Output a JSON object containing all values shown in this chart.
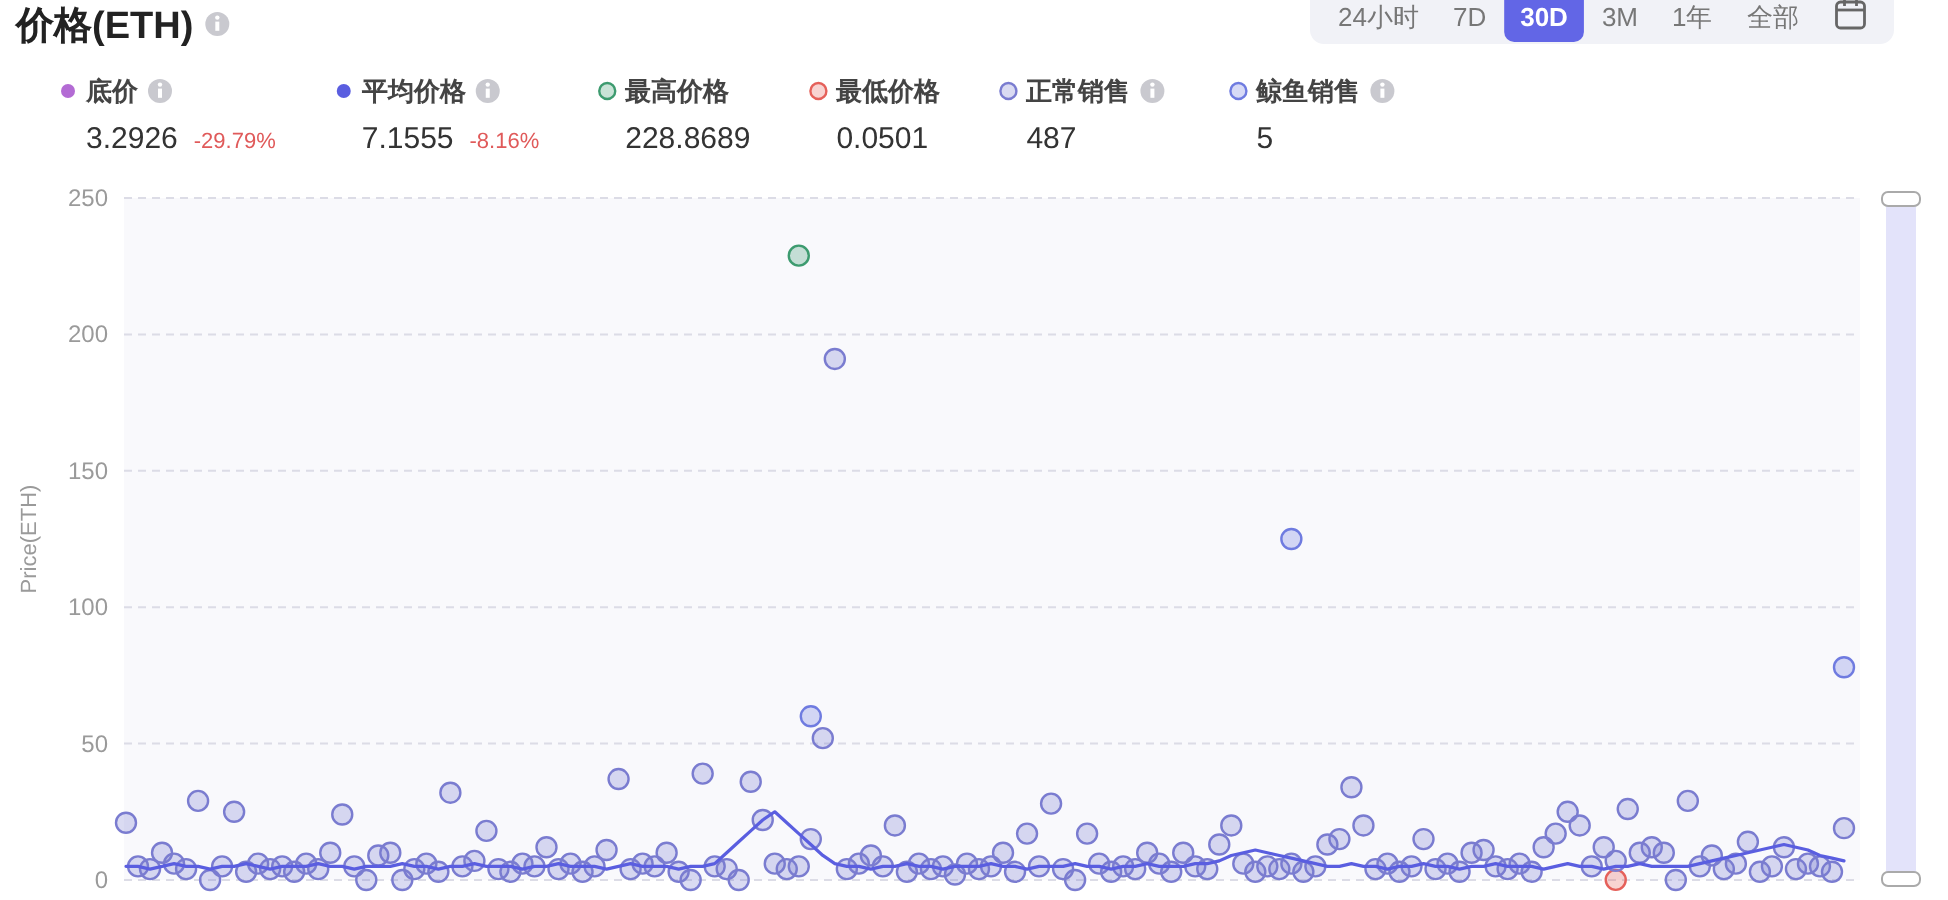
{
  "chart_data": {
    "type": "scatter",
    "title": "价格(ETH)",
    "ylabel": "Price(ETH)",
    "ylim": [
      0,
      250
    ],
    "yticks": [
      0,
      50,
      100,
      150,
      200,
      250
    ],
    "grid": "y",
    "legend": "top",
    "annotations": [
      "24小时",
      "7D",
      "30D",
      "3M",
      "1年",
      "全部",
      "3.2926",
      "-29.79%",
      "7.1555",
      "-8.16%",
      "228.8689",
      "0.0501",
      "487",
      "5"
    ],
    "categories": [
      null,
      null,
      null,
      null,
      null,
      null,
      null,
      null,
      null,
      null,
      null,
      null,
      null,
      null,
      null,
      null,
      null,
      null,
      null,
      null,
      null,
      null,
      null,
      null,
      null,
      null,
      null,
      null,
      null,
      null,
      null,
      null,
      null,
      null,
      null,
      null,
      null,
      null,
      null,
      null,
      null,
      null,
      null,
      null,
      null,
      null,
      null,
      null,
      null,
      null,
      null,
      null,
      null,
      null,
      null,
      null,
      null,
      null,
      null,
      null,
      null,
      null,
      null,
      null,
      null,
      null,
      null,
      null,
      null,
      null,
      null,
      null,
      null,
      null,
      null,
      null,
      null,
      null,
      null,
      null,
      null,
      null,
      null,
      null,
      null,
      null,
      null,
      null,
      null,
      null,
      null,
      null,
      null,
      null,
      null,
      null,
      null,
      null,
      null,
      null,
      null,
      null,
      null,
      null,
      null,
      null,
      null,
      null,
      null,
      null,
      null,
      null,
      null,
      null,
      null,
      null,
      null,
      null,
      null,
      null,
      null,
      null,
      null,
      null,
      null,
      null,
      null,
      null,
      null,
      null,
      null,
      null,
      null,
      null,
      null,
      null,
      null,
      null,
      null,
      null,
      null,
      null,
      null,
      null
    ],
    "series": [
      {
        "name": "底价",
        "type": "line",
        "color": "#b36bd4",
        "values": [
          null,
          null,
          null,
          null,
          null,
          null,
          null,
          null,
          null,
          null,
          null,
          null,
          null,
          null,
          null,
          null,
          null,
          null,
          null,
          null,
          null,
          null,
          null,
          null,
          null,
          null,
          null,
          null,
          null,
          null,
          null,
          null,
          null,
          null,
          null,
          null,
          null,
          null,
          null,
          null,
          null,
          null,
          null,
          null,
          null,
          null,
          null,
          null,
          null,
          null,
          null,
          null,
          null,
          null,
          null,
          null,
          null,
          null,
          null,
          null,
          null,
          null,
          null,
          null,
          null,
          null,
          null,
          null,
          null,
          null,
          null,
          null,
          null,
          null,
          null,
          null,
          null,
          null,
          null,
          null,
          null,
          null,
          null,
          null,
          null,
          null,
          null,
          null,
          null,
          null,
          null,
          null,
          null,
          null,
          null,
          null,
          null,
          null,
          null,
          null,
          null,
          null,
          null,
          null,
          null,
          null,
          null,
          null,
          null,
          null,
          null,
          null,
          null,
          null,
          null,
          null,
          null,
          null,
          null,
          null,
          null,
          null,
          null,
          null,
          null,
          null,
          null,
          null,
          null,
          null,
          null,
          null,
          null,
          null,
          null,
          null,
          null,
          null,
          null,
          null,
          null,
          null,
          null,
          null
        ]
      },
      {
        "name": "平均价格",
        "type": "line",
        "color": "#5a5ee0",
        "values": [
          5,
          5,
          4,
          5,
          6,
          5,
          5,
          4,
          5,
          5,
          6,
          5,
          4,
          5,
          5,
          5,
          6,
          5,
          5,
          4,
          5,
          5,
          5,
          6,
          5,
          5,
          4,
          5,
          5,
          6,
          5,
          5,
          5,
          4,
          5,
          5,
          6,
          5,
          5,
          5,
          4,
          5,
          6,
          5,
          5,
          5,
          4,
          5,
          5,
          6,
          10,
          14,
          18,
          22,
          25,
          21,
          17,
          13,
          9,
          6,
          5,
          5,
          4,
          5,
          5,
          6,
          5,
          5,
          4,
          5,
          5,
          5,
          6,
          5,
          5,
          4,
          5,
          5,
          5,
          6,
          5,
          5,
          4,
          5,
          5,
          6,
          5,
          5,
          5,
          6,
          6,
          7,
          9,
          10,
          11,
          10,
          9,
          8,
          7,
          6,
          5,
          5,
          6,
          5,
          5,
          4,
          5,
          5,
          6,
          5,
          5,
          4,
          5,
          5,
          6,
          5,
          5,
          5,
          4,
          5,
          6,
          5,
          5,
          4,
          5,
          5,
          6,
          5,
          5,
          5,
          5,
          6,
          7,
          8,
          9,
          10,
          11,
          12,
          13,
          12,
          11,
          9,
          8,
          7
        ]
      },
      {
        "name": "最高价格",
        "type": "scatter",
        "color": "#3d9b6f",
        "values": [
          null,
          null,
          null,
          null,
          null,
          null,
          null,
          null,
          null,
          null,
          null,
          null,
          null,
          null,
          null,
          null,
          null,
          null,
          null,
          null,
          null,
          null,
          null,
          null,
          null,
          null,
          null,
          null,
          null,
          null,
          null,
          null,
          null,
          null,
          null,
          null,
          null,
          null,
          null,
          null,
          null,
          null,
          null,
          null,
          null,
          null,
          null,
          null,
          null,
          null,
          null,
          null,
          null,
          null,
          null,
          null,
          228.8689,
          null,
          null,
          null,
          null,
          null,
          null,
          null,
          null,
          null,
          null,
          null,
          null,
          null,
          null,
          null,
          null,
          null,
          null,
          null,
          null,
          null,
          null,
          null,
          null,
          null,
          null,
          null,
          null,
          null,
          null,
          null,
          null,
          null,
          null,
          null,
          null,
          null,
          null,
          null,
          null,
          null,
          null,
          null,
          null,
          null,
          null,
          null,
          null,
          null,
          null,
          null,
          null,
          null,
          null,
          null,
          null,
          null,
          null,
          null,
          null,
          null,
          null,
          null,
          null,
          null,
          null,
          null,
          null,
          null,
          null,
          null,
          null,
          null,
          null,
          null,
          null,
          null,
          null,
          null,
          null,
          null,
          null,
          null,
          null,
          null,
          null,
          null
        ]
      },
      {
        "name": "最低价格",
        "type": "scatter",
        "color": "#e5605a",
        "values": [
          null,
          null,
          null,
          null,
          null,
          null,
          null,
          null,
          null,
          null,
          null,
          null,
          null,
          null,
          null,
          null,
          null,
          null,
          null,
          null,
          null,
          null,
          null,
          null,
          null,
          null,
          null,
          null,
          null,
          null,
          null,
          null,
          null,
          null,
          null,
          null,
          null,
          null,
          null,
          null,
          null,
          null,
          null,
          null,
          null,
          null,
          null,
          null,
          null,
          null,
          null,
          null,
          null,
          null,
          null,
          null,
          null,
          null,
          null,
          null,
          null,
          null,
          null,
          null,
          null,
          null,
          null,
          null,
          null,
          null,
          null,
          null,
          null,
          null,
          null,
          null,
          null,
          null,
          null,
          null,
          null,
          null,
          null,
          null,
          null,
          null,
          null,
          null,
          null,
          null,
          null,
          null,
          null,
          null,
          null,
          null,
          null,
          null,
          null,
          null,
          null,
          null,
          null,
          null,
          null,
          null,
          null,
          null,
          null,
          null,
          null,
          null,
          null,
          null,
          null,
          null,
          null,
          null,
          null,
          null,
          null,
          null,
          null,
          null,
          0.0501,
          null,
          null,
          null,
          null,
          null,
          null,
          null,
          null,
          null,
          null,
          null,
          null,
          null,
          null,
          null,
          null,
          null,
          null,
          null
        ]
      },
      {
        "name": "正常销售",
        "type": "scatter",
        "color": "#7a7cd0",
        "values": [
          21,
          5,
          4,
          10,
          6,
          4,
          29,
          0,
          5,
          25,
          3,
          6,
          4,
          5,
          3,
          6,
          4,
          10,
          24,
          5,
          0,
          9,
          10,
          0,
          4,
          6,
          3,
          32,
          5,
          7,
          18,
          4,
          3,
          6,
          5,
          12,
          4,
          6,
          3,
          5,
          11,
          37,
          4,
          6,
          5,
          10,
          3,
          0,
          39,
          5,
          4,
          0,
          36,
          22,
          6,
          4,
          5,
          15,
          52,
          191,
          4,
          6,
          9,
          5,
          20,
          3,
          6,
          4,
          5,
          2,
          6,
          4,
          5,
          10,
          3,
          17,
          5,
          28,
          4,
          0,
          17,
          6,
          3,
          5,
          4,
          10,
          6,
          3,
          10,
          5,
          4,
          13,
          20,
          6,
          3,
          5,
          4,
          6,
          3,
          5,
          13,
          15,
          34,
          20,
          4,
          6,
          3,
          5,
          15,
          4,
          6,
          3,
          10,
          11,
          5,
          4,
          6,
          3,
          12,
          17,
          25,
          20,
          5,
          12,
          7,
          26,
          10,
          12,
          10,
          0,
          29,
          5,
          9,
          4,
          6,
          14,
          3,
          5,
          12,
          4,
          6,
          5,
          3,
          19
        ]
      },
      {
        "name": "鲸鱼销售",
        "type": "scatter",
        "color": "#6f7be0",
        "values": [
          null,
          null,
          null,
          null,
          null,
          null,
          null,
          null,
          null,
          null,
          null,
          null,
          null,
          null,
          null,
          null,
          null,
          null,
          null,
          null,
          null,
          null,
          null,
          null,
          null,
          null,
          null,
          null,
          null,
          null,
          null,
          null,
          null,
          null,
          null,
          null,
          null,
          null,
          null,
          null,
          null,
          null,
          null,
          null,
          null,
          null,
          null,
          null,
          null,
          null,
          null,
          null,
          null,
          null,
          null,
          null,
          null,
          60,
          null,
          null,
          null,
          null,
          null,
          null,
          null,
          null,
          null,
          null,
          null,
          null,
          null,
          null,
          null,
          null,
          null,
          null,
          null,
          null,
          null,
          null,
          null,
          null,
          null,
          null,
          null,
          null,
          null,
          null,
          null,
          null,
          null,
          null,
          null,
          null,
          null,
          null,
          null,
          125,
          null,
          null,
          null,
          null,
          null,
          null,
          null,
          null,
          null,
          null,
          null,
          null,
          null,
          null,
          null,
          null,
          null,
          null,
          null,
          null,
          null,
          null,
          null,
          null,
          null,
          null,
          null,
          null,
          null,
          null,
          null,
          null,
          null,
          null,
          null,
          null,
          null,
          null,
          null,
          null,
          null,
          null,
          null,
          null,
          null,
          78
        ]
      }
    ]
  }
}
